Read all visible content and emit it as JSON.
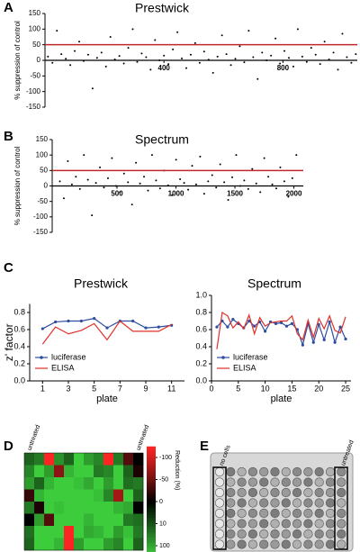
{
  "chart_data": [
    {
      "type": "scatter",
      "panel": "A",
      "title": "Prestwick",
      "ylabel": "% suppression of control",
      "xlim": [
        0,
        1050
      ],
      "xticks": [
        400,
        800
      ],
      "ylim": [
        -150,
        150
      ],
      "yticks": [
        150,
        100,
        50,
        0,
        -50,
        -100,
        -150
      ],
      "threshold": 50,
      "threshold_color": "#c0272d",
      "color": "#000000",
      "x": [
        10,
        25,
        40,
        55,
        70,
        85,
        100,
        115,
        130,
        145,
        160,
        175,
        190,
        205,
        220,
        235,
        250,
        265,
        280,
        295,
        310,
        325,
        340,
        355,
        370,
        385,
        400,
        415,
        430,
        445,
        460,
        475,
        490,
        505,
        520,
        535,
        550,
        565,
        580,
        595,
        610,
        625,
        640,
        655,
        670,
        685,
        700,
        715,
        730,
        745,
        760,
        775,
        790,
        805,
        820,
        835,
        850,
        865,
        880,
        895,
        910,
        925,
        940,
        955,
        970,
        985,
        1000,
        1015,
        1030,
        1045
      ],
      "values": [
        12,
        -8,
        95,
        20,
        5,
        -15,
        30,
        60,
        -2,
        18,
        -90,
        8,
        25,
        -20,
        75,
        3,
        14,
        -10,
        40,
        100,
        -5,
        22,
        10,
        -30,
        65,
        0,
        15,
        -12,
        35,
        90,
        6,
        -25,
        18,
        55,
        -8,
        28,
        2,
        -40,
        12,
        80,
        20,
        -15,
        5,
        45,
        -6,
        95,
        10,
        -60,
        25,
        0,
        15,
        70,
        -10,
        30,
        8,
        -20,
        100,
        12,
        -5,
        40,
        18,
        -12,
        60,
        3,
        25,
        -30,
        85,
        10,
        -8,
        20
      ]
    },
    {
      "type": "scatter",
      "panel": "B",
      "title": "Spectrum",
      "ylabel": "% suppression of control",
      "xlim": [
        -50,
        2080
      ],
      "xticks": [
        500,
        1000,
        1500,
        2000
      ],
      "ylim": [
        -150,
        150
      ],
      "yticks": [
        150,
        100,
        50,
        0,
        -50,
        -100,
        -150
      ],
      "threshold": 50,
      "threshold_color": "#c0272d",
      "color": "#000000",
      "x": [
        15,
        49,
        83,
        117,
        151,
        185,
        219,
        253,
        287,
        321,
        355,
        389,
        423,
        457,
        491,
        525,
        559,
        593,
        627,
        661,
        695,
        729,
        763,
        797,
        831,
        865,
        899,
        933,
        967,
        1001,
        1035,
        1069,
        1103,
        1137,
        1171,
        1205,
        1239,
        1273,
        1307,
        1341,
        1375,
        1409,
        1443,
        1477,
        1511,
        1545,
        1579,
        1613,
        1647,
        1681,
        1715,
        1749,
        1783,
        1817,
        1851,
        1885,
        1919,
        1953,
        1987,
        2021
      ],
      "values": [
        15,
        -40,
        80,
        5,
        30,
        -10,
        100,
        20,
        -95,
        10,
        60,
        -5,
        25,
        90,
        0,
        -20,
        40,
        12,
        -60,
        75,
        8,
        30,
        -15,
        100,
        18,
        -8,
        50,
        2,
        -30,
        85,
        22,
        10,
        -12,
        65,
        5,
        95,
        -25,
        15,
        35,
        -5,
        70,
        12,
        -45,
        28,
        100,
        0,
        18,
        -10,
        55,
        8,
        -20,
        90,
        30,
        5,
        -8,
        60,
        15,
        -35,
        25,
        100
      ]
    },
    {
      "type": "line",
      "panel": "C",
      "title": "Prestwick",
      "xlabel": "plate",
      "ylabel": "z' factor",
      "xlim": [
        0,
        12
      ],
      "xticks": [
        1,
        3,
        5,
        7,
        9,
        11
      ],
      "ylim": [
        0,
        0.9
      ],
      "yticks": [
        {
          "value": 0,
          "label": "0.0"
        },
        0.2,
        0.4,
        0.6,
        0.8
      ],
      "legend": "lower-left",
      "x": [
        1,
        2,
        3,
        4,
        5,
        6,
        7,
        8,
        9,
        10,
        11
      ],
      "series": [
        {
          "name": "luciferase",
          "color": "#2e4ea1",
          "marker": "circle",
          "values": [
            0.61,
            0.69,
            0.7,
            0.7,
            0.73,
            0.62,
            0.7,
            0.7,
            0.62,
            0.63,
            0.65
          ]
        },
        {
          "name": "ELISA",
          "color": "#e0302a",
          "marker": "none",
          "values": [
            0.43,
            0.63,
            0.55,
            0.59,
            0.67,
            0.48,
            0.7,
            0.58,
            0.58,
            0.58,
            0.66
          ]
        }
      ]
    },
    {
      "type": "line",
      "title": "Spectrum",
      "xlabel": "plate",
      "xlim": [
        0,
        26
      ],
      "xticks": [
        0,
        5,
        10,
        15,
        20,
        25
      ],
      "ylim": [
        0,
        1.0
      ],
      "yticks": [
        {
          "value": 0,
          "label": "0.0"
        },
        0.2,
        0.4,
        0.6,
        0.8,
        {
          "value": 1,
          "label": "1.0"
        }
      ],
      "legend": "lower-left",
      "x": [
        1,
        2,
        3,
        4,
        5,
        6,
        7,
        8,
        9,
        10,
        11,
        12,
        13,
        14,
        15,
        16,
        17,
        18,
        19,
        20,
        21,
        22,
        23,
        24,
        25
      ],
      "series": [
        {
          "name": "luciferase",
          "color": "#2e4ea1",
          "marker": "circle",
          "values": [
            0.63,
            0.7,
            0.63,
            0.72,
            0.67,
            0.62,
            0.7,
            0.64,
            0.69,
            0.58,
            0.69,
            0.67,
            0.68,
            0.64,
            0.67,
            0.6,
            0.42,
            0.67,
            0.45,
            0.66,
            0.48,
            0.69,
            0.45,
            0.63,
            0.49
          ]
        },
        {
          "name": "ELISA",
          "color": "#e0302a",
          "marker": "none",
          "values": [
            0.37,
            0.8,
            0.76,
            0.62,
            0.69,
            0.61,
            0.77,
            0.55,
            0.74,
            0.64,
            0.68,
            0.69,
            0.7,
            0.7,
            0.76,
            0.55,
            0.48,
            0.71,
            0.51,
            0.73,
            0.61,
            0.76,
            0.59,
            0.56,
            0.75
          ]
        }
      ]
    },
    {
      "type": "heatmap",
      "panel": "D",
      "colorbar_label": "Reduction (%)",
      "categories": [
        "untreated",
        null,
        null,
        null,
        null,
        null,
        null,
        null,
        null,
        null,
        null,
        "untreated"
      ],
      "colorbar": [
        {
          "value": -100,
          "color": "#ff2424"
        },
        {
          "value": -50,
          "color": "#8c1414"
        },
        {
          "value": 0,
          "color": "#000000"
        },
        {
          "value": 10,
          "color": "#1d631d"
        },
        {
          "value": 100,
          "color": "#3ccc3c"
        }
      ],
      "values": [
        [
          10,
          30,
          -100,
          50,
          10,
          100,
          60,
          40,
          -100,
          30,
          -30,
          0
        ],
        [
          40,
          100,
          60,
          -50,
          80,
          100,
          100,
          30,
          40,
          100,
          10,
          -10
        ],
        [
          60,
          10,
          80,
          100,
          100,
          90,
          70,
          100,
          60,
          100,
          20,
          30
        ],
        [
          -20,
          80,
          100,
          100,
          100,
          100,
          100,
          90,
          40,
          -60,
          100,
          10
        ],
        [
          30,
          -10,
          100,
          90,
          100,
          100,
          100,
          100,
          100,
          80,
          70,
          0
        ],
        [
          0,
          60,
          -30,
          100,
          100,
          100,
          80,
          100,
          100,
          100,
          30,
          20
        ],
        [
          20,
          100,
          100,
          100,
          -100,
          100,
          70,
          80,
          100,
          60,
          90,
          30
        ],
        [
          10,
          100,
          100,
          80,
          -100,
          60,
          100,
          100,
          60,
          40,
          100,
          10
        ]
      ]
    }
  ],
  "panel_e": {
    "label": "E",
    "left_label": "no cells",
    "right_label": "untreated"
  }
}
